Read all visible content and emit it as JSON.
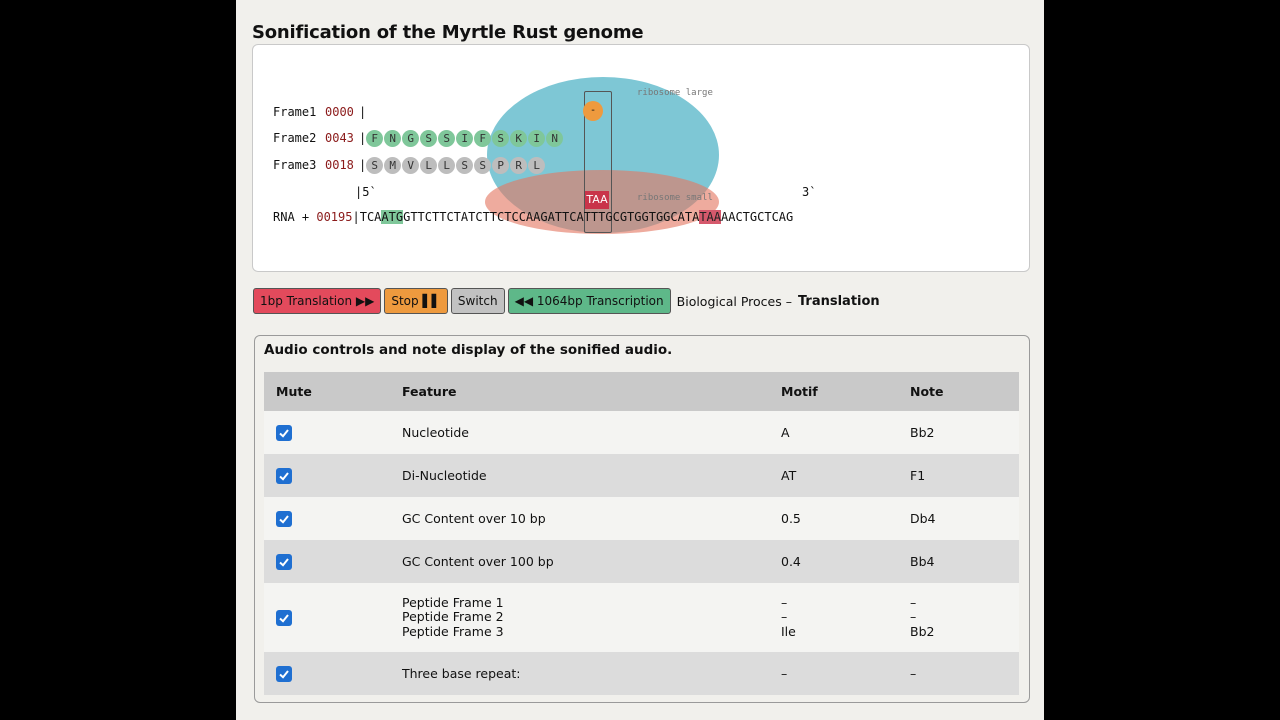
{
  "title": "Sonification of the Myrtle Rust genome",
  "viz": {
    "ribosome_large_label": "ribosome large",
    "ribosome_small_label": "ribosome small",
    "current_peptide": "-",
    "stop_codon": "TAA",
    "frames": [
      {
        "label": "Frame1",
        "num": "0000",
        "beads": []
      },
      {
        "label": "Frame2",
        "num": "0043",
        "beads": [
          "F",
          "N",
          "G",
          "S",
          "S",
          "I",
          "F",
          "S",
          "K",
          "I",
          "N"
        ]
      },
      {
        "label": "Frame3",
        "num": "0018",
        "beads": [
          "S",
          "M",
          "V",
          "L",
          "L",
          "S",
          "S",
          "P",
          "R",
          "L"
        ]
      }
    ],
    "five_prime": "5`",
    "three_prime": "3`",
    "rna_label": "RNA +",
    "rna_num": "00195",
    "rna_seq": {
      "a": "TCA",
      "start": "ATG",
      "b": "GTTCTTCTATCTTCTCCAAGATTCATTTGCGTGGTGGCATA",
      "stop": "TAA",
      "c": "AACTGCTCAG"
    }
  },
  "controls": {
    "translation": "1bp Translation ▶▶",
    "stop": "Stop ▌▌",
    "switch": "Switch",
    "transcription": "◀◀ 1064bp Transcription",
    "bio_label": "Biological Proces –",
    "bio_value": "Translation"
  },
  "audio": {
    "title": "Audio controls and note display of the sonified audio.",
    "headers": {
      "mute": "Mute",
      "feature": "Feature",
      "motif": "Motif",
      "note": "Note"
    },
    "rows": [
      {
        "feature": "Nucleotide",
        "motif": "A",
        "note": "Bb2",
        "checked": true
      },
      {
        "feature": "Di-Nucleotide",
        "motif": "AT",
        "note": "F1",
        "checked": true
      },
      {
        "feature": "GC Content over 10 bp",
        "motif": "0.5",
        "note": "Db4",
        "checked": true
      },
      {
        "feature": "GC Content over 100 bp",
        "motif": "0.4",
        "note": "Bb4",
        "checked": true
      },
      {
        "feature_lines": [
          "Peptide Frame 1",
          "Peptide Frame 2",
          "Peptide Frame 3"
        ],
        "motif_lines": [
          "–",
          "–",
          "Ile"
        ],
        "note_lines": [
          "–",
          "–",
          "Bb2"
        ],
        "checked": true
      },
      {
        "feature": "Three base repeat:",
        "motif": "–",
        "note": "–",
        "checked": true
      }
    ]
  },
  "colors": {
    "accent_red": "#e34a5c",
    "accent_orange": "#ee9a3e",
    "accent_green": "#5eb889",
    "checkbox": "#1f6fd1"
  }
}
